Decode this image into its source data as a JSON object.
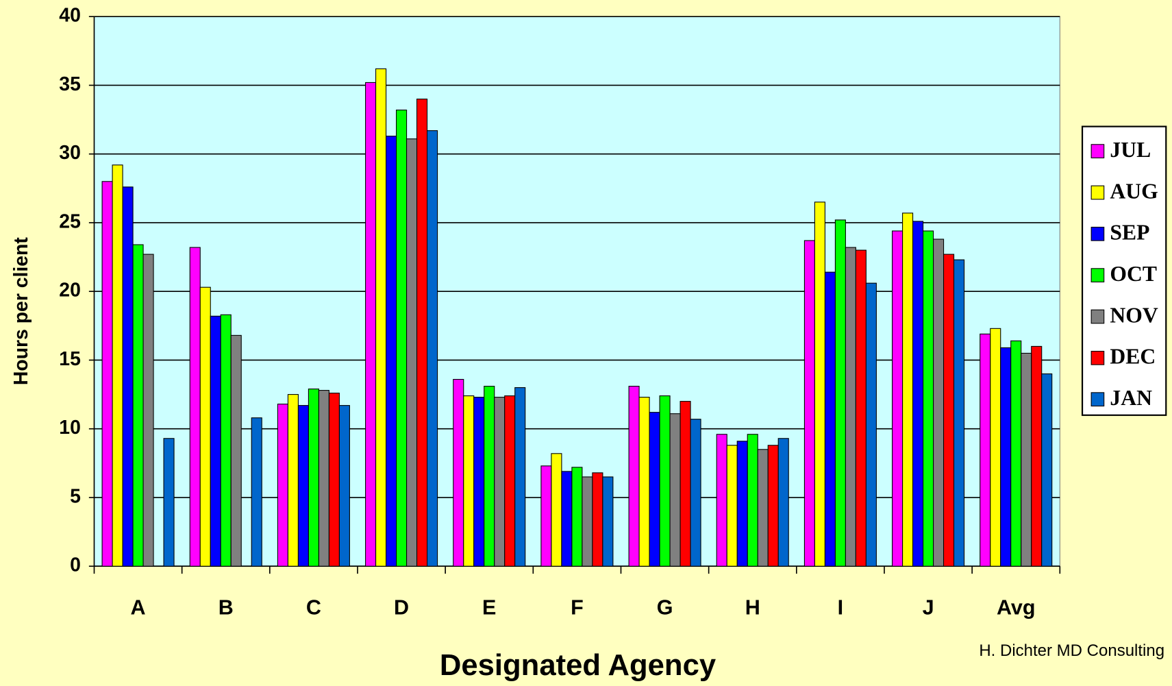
{
  "chart_data": {
    "type": "bar",
    "x_label": "Designated Agency",
    "y_label": "Hours per client",
    "annotation": "H. Dichter MD Consulting",
    "categories": [
      "A",
      "B",
      "C",
      "D",
      "E",
      "F",
      "G",
      "H",
      "I",
      "J",
      "Avg"
    ],
    "series": [
      {
        "name": "JUL",
        "color": "#ff00ff",
        "values": [
          28,
          23.2,
          11.8,
          35.2,
          13.6,
          7.3,
          13.1,
          9.6,
          23.7,
          24.4,
          16.9
        ]
      },
      {
        "name": "AUG",
        "color": "#ffff00",
        "values": [
          29.2,
          20.3,
          12.5,
          36.2,
          12.4,
          8.2,
          12.3,
          8.8,
          26.5,
          25.7,
          17.3
        ]
      },
      {
        "name": "SEP",
        "color": "#0000ff",
        "values": [
          27.6,
          18.2,
          11.7,
          31.3,
          12.3,
          6.9,
          11.2,
          9.1,
          21.4,
          25.1,
          15.9
        ]
      },
      {
        "name": "OCT",
        "color": "#00ff00",
        "values": [
          23.4,
          18.3,
          12.9,
          33.2,
          13.1,
          7.2,
          12.4,
          9.6,
          25.2,
          24.4,
          16.4
        ]
      },
      {
        "name": "NOV",
        "color": "#808080",
        "values": [
          22.7,
          16.8,
          12.8,
          31.1,
          12.3,
          6.5,
          11.1,
          8.5,
          23.2,
          23.8,
          15.5
        ]
      },
      {
        "name": "DEC",
        "color": "#ff0000",
        "values": [
          null,
          null,
          12.6,
          34.0,
          12.4,
          6.8,
          12.0,
          8.8,
          23.0,
          22.7,
          16.0
        ]
      },
      {
        "name": "JAN",
        "color": "#0066cc",
        "values": [
          9.3,
          10.8,
          11.7,
          31.7,
          13.0,
          6.5,
          10.7,
          9.3,
          20.6,
          22.3,
          14.0
        ]
      }
    ],
    "ylim": [
      0,
      40
    ],
    "yticks": [
      0,
      5,
      10,
      15,
      20,
      25,
      30,
      35,
      40
    ],
    "grid": true,
    "legend": "right",
    "plot_background": "#ccffff"
  }
}
